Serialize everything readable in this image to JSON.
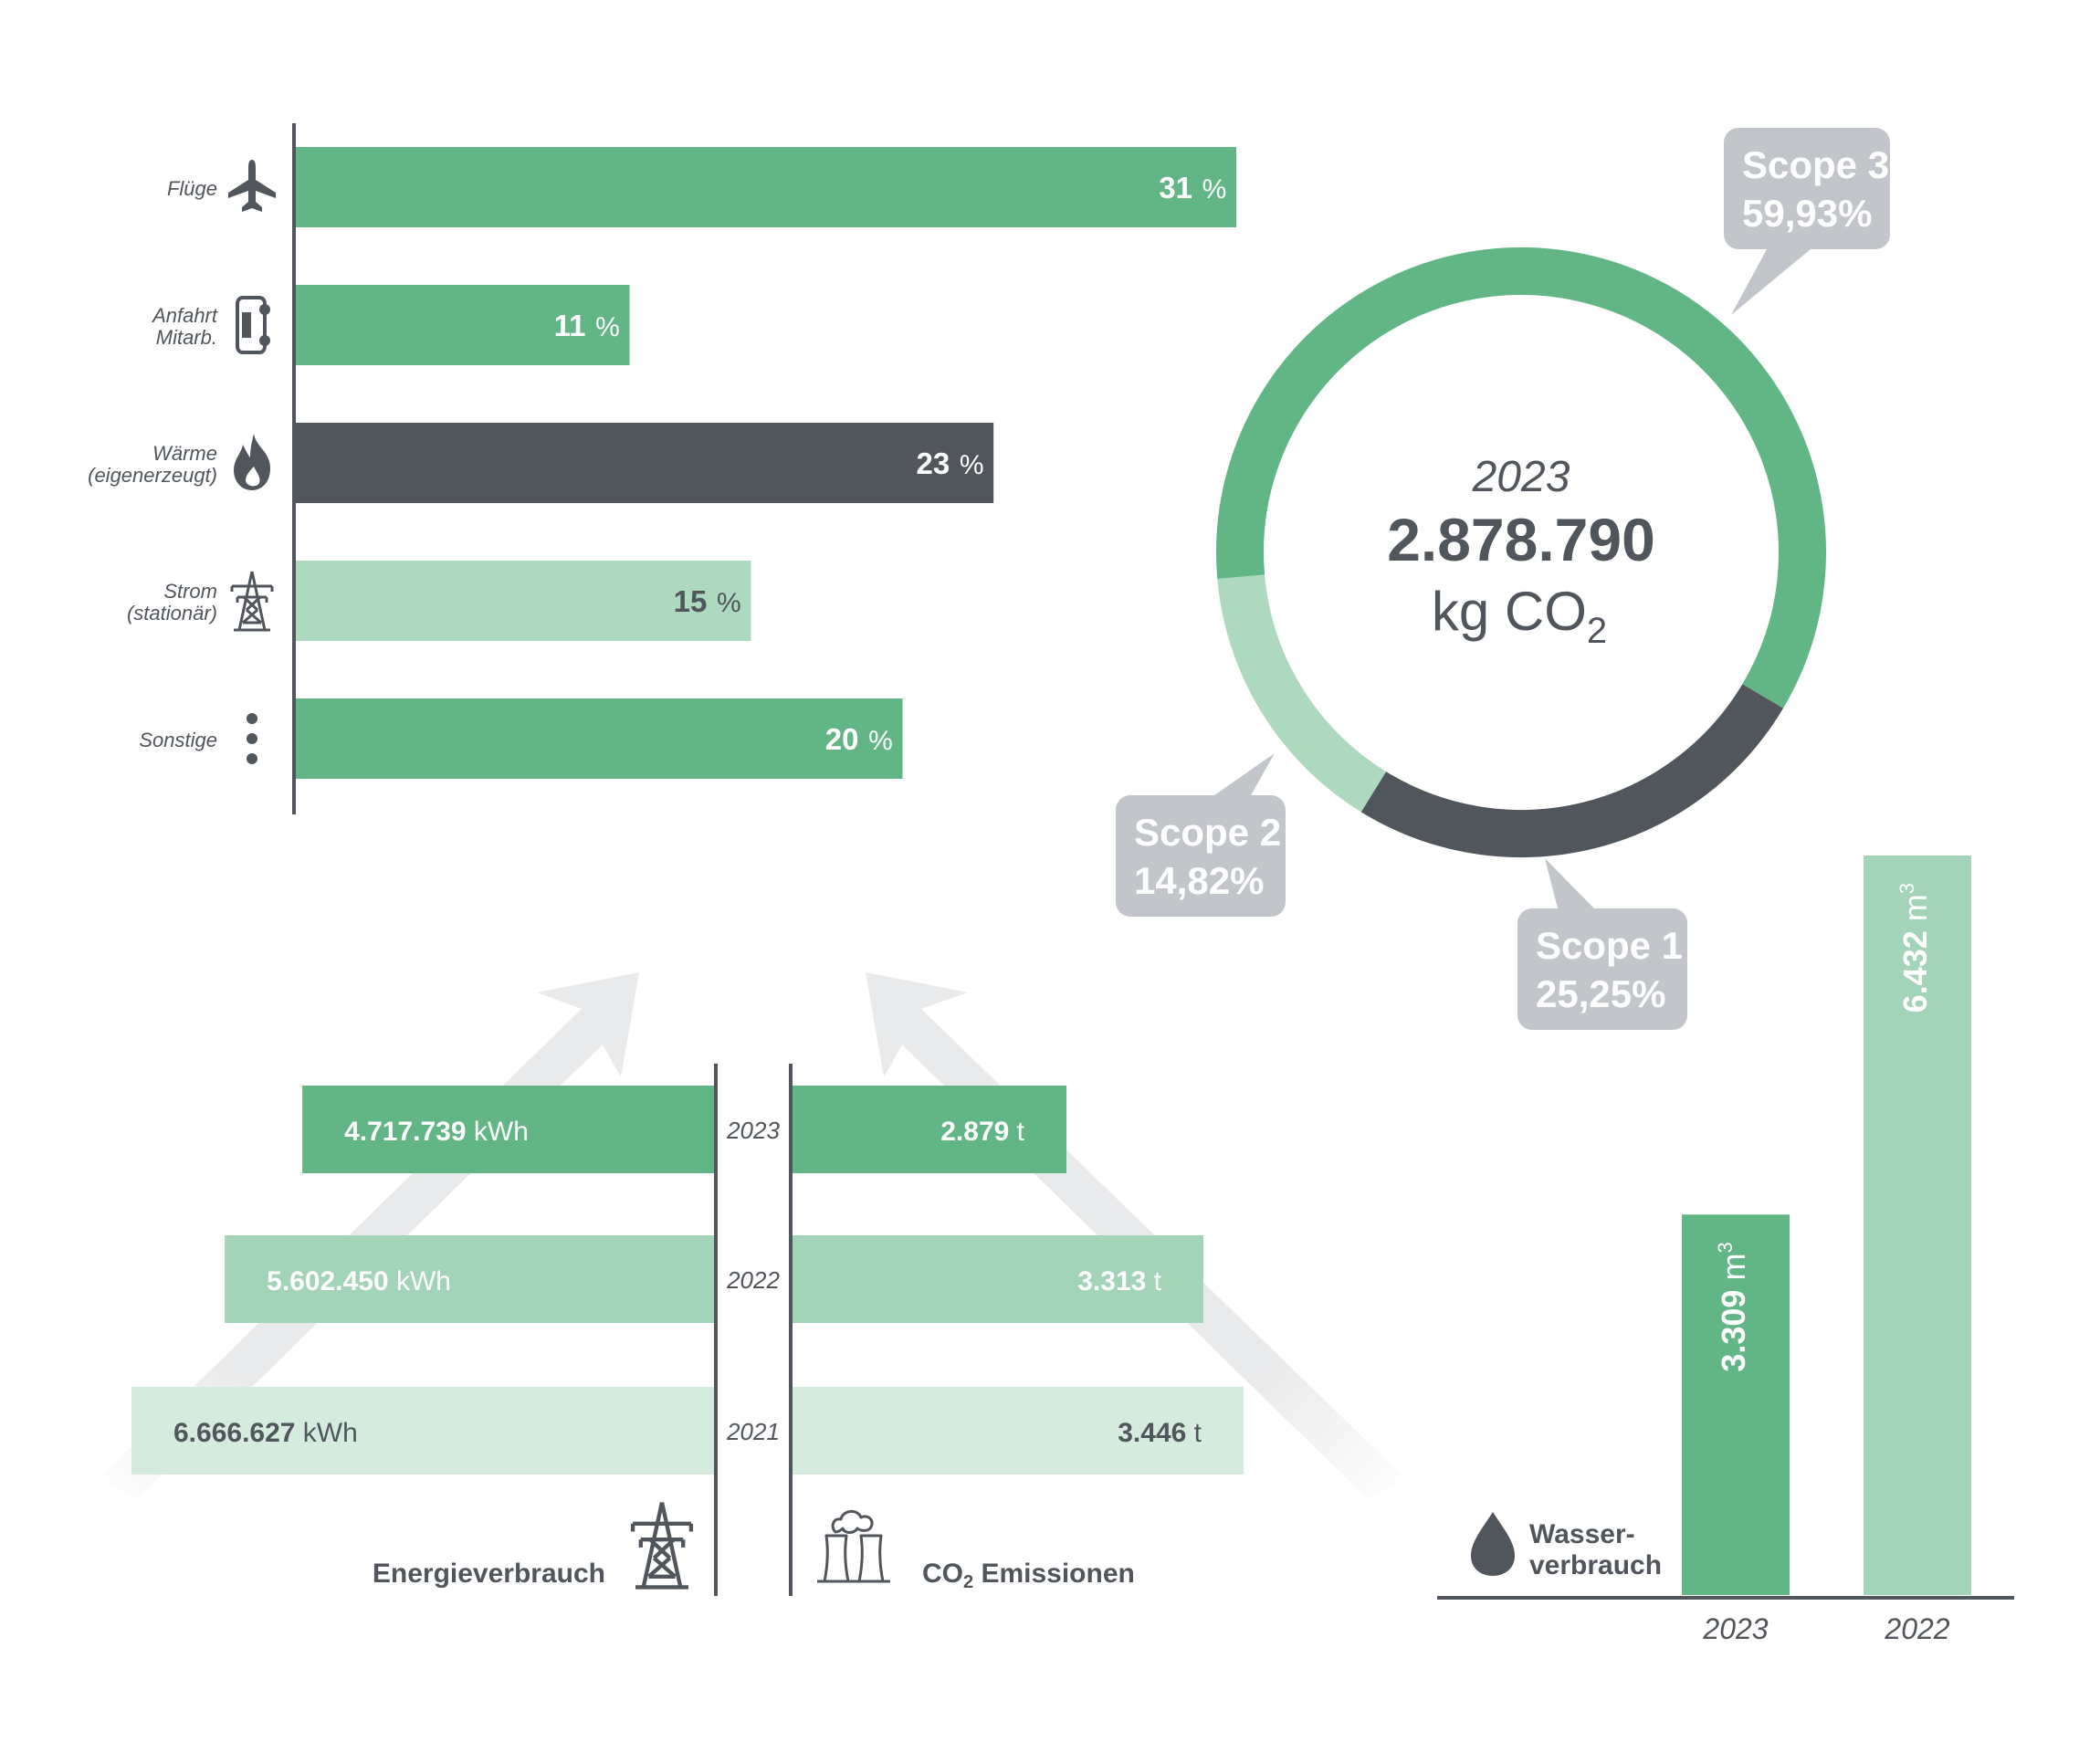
{
  "colors": {
    "green": "#62b686",
    "mid_green": "#a3d4b7",
    "light_green": "#d4ebde",
    "scope2_green": "#add9bf",
    "dark": "#50565b",
    "callout": "#c2c6cb",
    "arrow": "#e9eaeb",
    "white": "#ffffff"
  },
  "chart_data": [
    {
      "id": "emission_sources",
      "type": "bar",
      "orientation": "horizontal",
      "unit": "%",
      "categories": [
        {
          "label": "Flüge",
          "icon": "airplane-icon",
          "value": 31,
          "color": "green"
        },
        {
          "label": "Anfahrt\nMitarb.",
          "icon": "car-icon",
          "value": 11,
          "color": "green"
        },
        {
          "label": "Wärme\n(eigenerzeugt)",
          "icon": "flame-icon",
          "value": 23,
          "color": "dark"
        },
        {
          "label": "Strom\n(stationär)",
          "icon": "power-pylon-icon",
          "value": 15,
          "color": "scope2_green"
        },
        {
          "label": "Sonstige",
          "icon": "more-dots-icon",
          "value": 20,
          "color": "green"
        }
      ],
      "xlim": [
        0,
        31
      ]
    },
    {
      "id": "scopes",
      "type": "pie",
      "variant": "donut",
      "center_year": "2023",
      "center_value": "2.878.790",
      "center_unit": "kg CO",
      "center_unit_sub": "2",
      "slices": [
        {
          "name": "Scope 3",
          "value": 59.93,
          "label": "59,93%",
          "color": "green"
        },
        {
          "name": "Scope 1",
          "value": 25.25,
          "label": "25,25%",
          "color": "dark"
        },
        {
          "name": "Scope 2",
          "value": 14.82,
          "label": "14,82%",
          "color": "scope2_green"
        }
      ]
    },
    {
      "id": "energy_consumption",
      "type": "bar",
      "orientation": "horizontal",
      "title": "Energieverbrauch",
      "icon": "power-pylon-icon",
      "unit": "kWh",
      "categories": [
        "2023",
        "2022",
        "2021"
      ],
      "values": [
        4717739,
        5602450,
        6666627
      ],
      "value_labels": [
        "4.717.739",
        "5.602.450",
        "6.666.627"
      ],
      "xlim": [
        0,
        6666627
      ]
    },
    {
      "id": "co2_emissions",
      "type": "bar",
      "orientation": "horizontal",
      "title_main": "CO",
      "title_sub": "2",
      "title_rest": " Emissionen",
      "icon": "factory-icon",
      "unit": "t",
      "categories": [
        "2023",
        "2022",
        "2021"
      ],
      "values": [
        2879,
        3313,
        3446
      ],
      "value_labels": [
        "2.879",
        "3.313",
        "3.446"
      ],
      "xlim": [
        0,
        3446
      ]
    },
    {
      "id": "water_consumption",
      "type": "bar",
      "orientation": "vertical",
      "title": "Wasser-\nverbrauch",
      "icon": "water-drop-icon",
      "unit": "m",
      "unit_sup": "3",
      "categories": [
        "2023",
        "2022"
      ],
      "values": [
        3309,
        6432
      ],
      "value_labels": [
        "3.309",
        "6.432"
      ],
      "ylim": [
        0,
        6432
      ]
    }
  ]
}
